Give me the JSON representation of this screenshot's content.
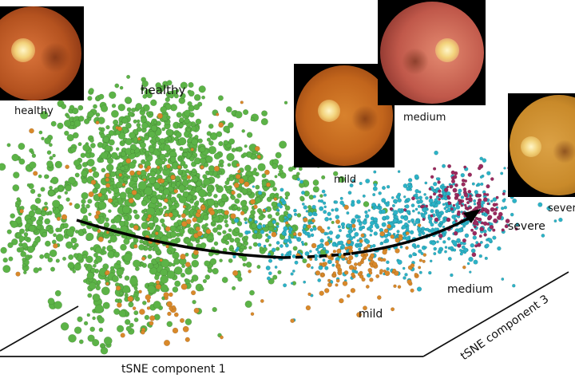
{
  "chart_data": {
    "type": "scatter",
    "title": "",
    "xlabel": "tSNE component 1",
    "zlabel": "tSNE component 3",
    "series": [
      {
        "name": "healthy",
        "color": "#5cb347"
      },
      {
        "name": "mild",
        "color": "#d9892a"
      },
      {
        "name": "medium",
        "color": "#2cb3c7"
      },
      {
        "name": "severe",
        "color": "#9b2a5e"
      }
    ],
    "cluster_labels": [
      "healthy",
      "mild",
      "medium",
      "severe"
    ],
    "trajectory": "healthy → mild → medium → severe"
  },
  "thumbnails": [
    {
      "caption": "healthy",
      "tone": "#a8501f"
    },
    {
      "caption": "mild",
      "tone": "#c2651c"
    },
    {
      "caption": "medium",
      "tone": "#c0584a"
    },
    {
      "caption": "severe",
      "tone": "#c98a2a"
    }
  ]
}
